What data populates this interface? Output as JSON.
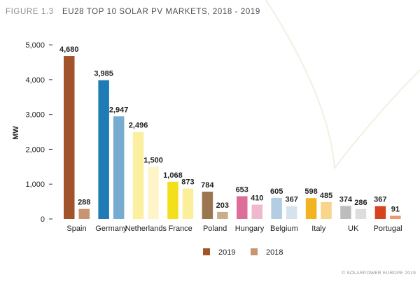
{
  "figure_label": "FIGURE 1.3",
  "chart_data": {
    "type": "bar",
    "title": "EU28 TOP 10 SOLAR PV MARKETS, 2018 - 2019",
    "xlabel": "",
    "ylabel": "MW",
    "ylim": [
      0,
      5000
    ],
    "yticks": [
      0,
      1000,
      2000,
      3000,
      4000,
      5000
    ],
    "ytick_labels": [
      "0",
      "1,000",
      "2,000",
      "3,000",
      "4,000",
      "5,000"
    ],
    "grid": false,
    "legend_position": "bottom-center",
    "categories": [
      "Spain",
      "Germany",
      "Netherlands",
      "France",
      "Poland",
      "Hungary",
      "Belgium",
      "Italy",
      "UK",
      "Portugal"
    ],
    "series": [
      {
        "name": "2019",
        "values": [
          4680,
          3985,
          2496,
          1068,
          784,
          653,
          605,
          598,
          374,
          367
        ],
        "labels": [
          "4,680",
          "3,985",
          "2,496",
          "1,068",
          "784",
          "653",
          "605",
          "598",
          "374",
          "367"
        ]
      },
      {
        "name": "2018",
        "values": [
          288,
          2947,
          1500,
          873,
          203,
          410,
          367,
          485,
          286,
          91
        ],
        "labels": [
          "288",
          "2,947",
          "1,500",
          "873",
          "203",
          "410",
          "367",
          "485",
          "286",
          "91"
        ]
      }
    ],
    "colors_2019": [
      "#a3532a",
      "#1f7bb5",
      "#fbf0a0",
      "#f3df1b",
      "#9b7650",
      "#dd6e9a",
      "#b4cde2",
      "#f3b21f",
      "#bdbdbd",
      "#d6431f"
    ],
    "colors_2018": [
      "#c99470",
      "#78abd0",
      "#fdf5c8",
      "#fbef9b",
      "#c9ae8c",
      "#eeb8cd",
      "#d6e3ee",
      "#f8d48c",
      "#dddddd",
      "#e89a6c"
    ],
    "legend_colors": [
      "#a3532a",
      "#c99470"
    ]
  },
  "copyright": "© SOLARPOWER EUROPE 2019"
}
